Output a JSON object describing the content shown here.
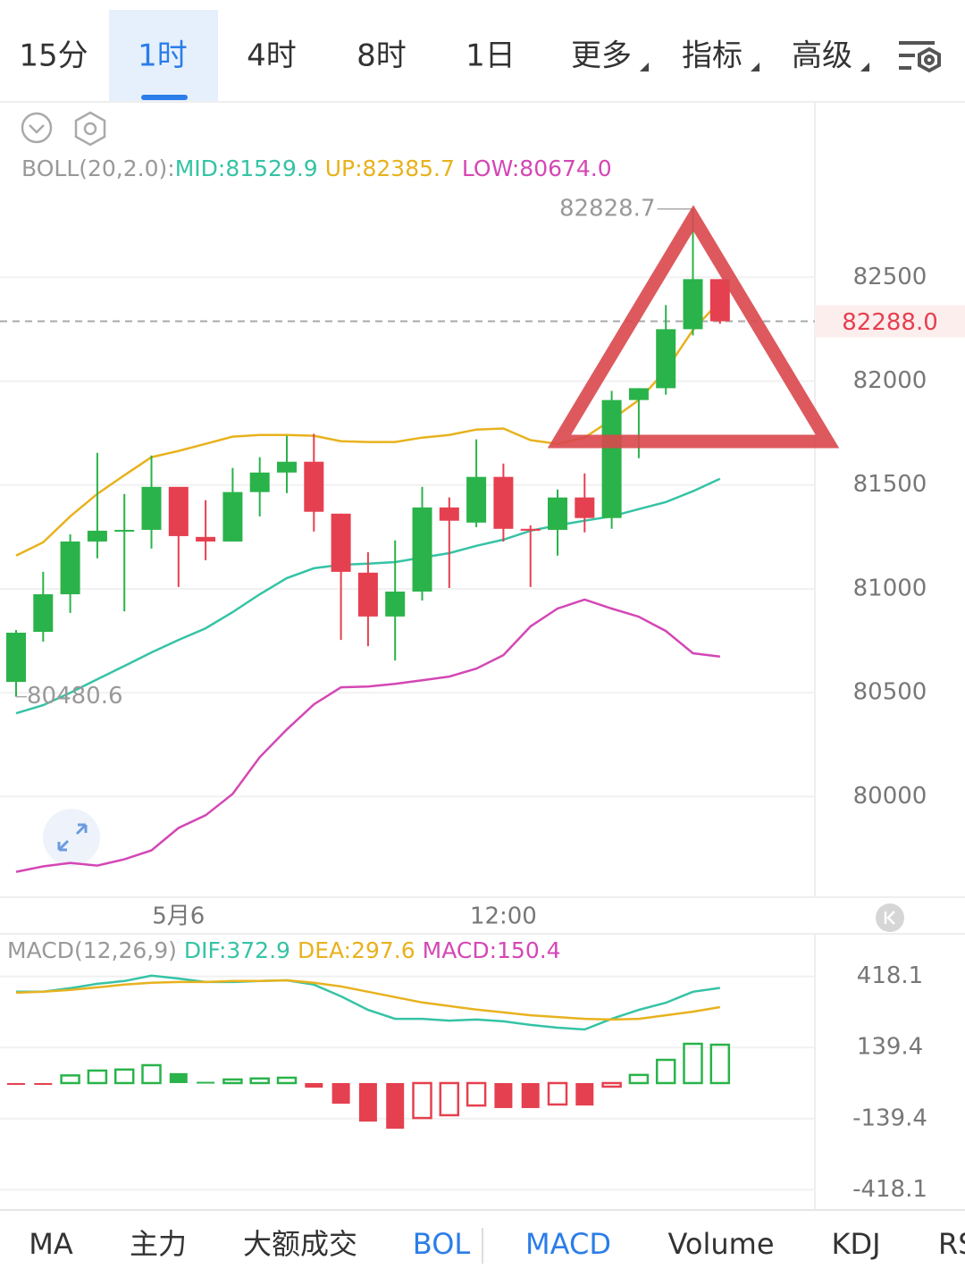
{
  "tabs": [
    "15分",
    "1时",
    "4时",
    "8时",
    "1日",
    "更多",
    "指标",
    "高级"
  ],
  "indicator_tabs": [
    "MA",
    "主力",
    "大额成交",
    "BOL",
    "MACD",
    "Volume",
    "KDJ",
    "RS"
  ],
  "chart_data": [
    {
      "type": "candlestick",
      "legend_label": "BOLL(20,2.0):",
      "categories": [
        null,
        null,
        null,
        null,
        null,
        null,
        "5月6",
        null,
        null,
        null,
        null,
        null,
        null,
        null,
        null,
        null,
        null,
        null,
        "12:00",
        null,
        null,
        null,
        null,
        null,
        null,
        null,
        null
      ],
      "open": [
        80552,
        80793,
        80974,
        81228,
        81284,
        81284,
        81491,
        81250,
        81228,
        81466,
        81560,
        81612,
        81362,
        81078,
        80867,
        80987,
        81392,
        81319,
        81539,
        81289,
        81284,
        81440,
        81341,
        81909,
        81966,
        82250,
        82491
      ],
      "high": [
        80802,
        81082,
        81263,
        81655,
        81457,
        81642,
        81491,
        81427,
        81582,
        81634,
        81737,
        81746,
        81362,
        81177,
        81233,
        81491,
        81440,
        81720,
        81603,
        81306,
        81478,
        81556,
        81953,
        81966,
        82366,
        82828.7,
        82491
      ],
      "low": [
        80480.6,
        80746,
        80884,
        81147,
        80892,
        81194,
        81009,
        81138,
        81228,
        81349,
        81461,
        81276,
        80754,
        80724,
        80655,
        80944,
        81004,
        81297,
        81228,
        81009,
        81160,
        81272,
        81289,
        81629,
        81935,
        82220,
        82276
      ],
      "close": [
        80789,
        80974,
        81228,
        81280,
        81284,
        81491,
        81254,
        81228,
        81466,
        81560,
        81612,
        81371,
        81082,
        80867,
        80987,
        81392,
        81328,
        81539,
        81289,
        81280,
        81440,
        81341,
        81909,
        81966,
        82250,
        82491,
        82288
      ],
      "last_price_label": "82288.0",
      "up_color": "#2ab34a",
      "down_color": "#e5404f",
      "series": [
        {
          "name": "MID:81529.9",
          "color": "#35c3a5",
          "values": [
            80401,
            80440,
            80500,
            80565,
            80629,
            80694,
            80754,
            80810,
            80888,
            80974,
            81052,
            81099,
            81116,
            81121,
            81129,
            81151,
            81172,
            81207,
            81237,
            81280,
            81306,
            81328,
            81349,
            81384,
            81418,
            81470,
            81529.9
          ]
        },
        {
          "name": "UP:82385.7",
          "color": "#e8b21e",
          "values": [
            81160,
            81224,
            81349,
            81457,
            81547,
            81634,
            81664,
            81698,
            81733,
            81741,
            81741,
            81737,
            81711,
            81707,
            81707,
            81728,
            81741,
            81767,
            81772,
            81716,
            81698,
            81728,
            81815,
            81909,
            82052,
            82246,
            82385.7
          ]
        },
        {
          "name": "LOW:80674.0",
          "color": "#d447b5",
          "values": [
            79638,
            79664,
            79681,
            79668,
            79698,
            79741,
            79849,
            79910,
            80013,
            80190,
            80323,
            80444,
            80526,
            80530,
            80543,
            80560,
            80578,
            80616,
            80681,
            80819,
            80905,
            80948,
            80905,
            80866,
            80797,
            80690,
            80674.0
          ]
        }
      ],
      "ylim": [
        79520,
        83340
      ],
      "yticks": [
        80000,
        80500,
        81000,
        81500,
        82000,
        82500
      ],
      "grid": true
    },
    {
      "type": "macd",
      "title": "MACD(12,26,9)",
      "series": [
        {
          "name": "DIF:372.9",
          "color": "#35c3a5",
          "values": [
            358,
            358,
            372,
            389,
            400,
            421,
            410,
            396,
            396,
            400,
            403,
            386,
            340,
            287,
            252,
            252,
            245,
            249,
            242,
            228,
            217,
            210,
            252,
            287,
            315,
            358,
            372.9
          ]
        },
        {
          "name": "DEA:297.6",
          "color": "#e8b21e",
          "values": [
            354,
            358,
            365,
            375,
            386,
            393,
            396,
            396,
            400,
            400,
            403,
            393,
            379,
            358,
            337,
            316,
            302,
            288,
            277,
            266,
            259,
            252,
            249,
            252,
            266,
            280,
            297.6
          ]
        }
      ],
      "histogram": {
        "name": "MACD:150.4",
        "name_color": "#d447b5",
        "up_color": "#2ab34a",
        "down_color": "#e5404f",
        "values": [
          -3,
          -3,
          30,
          49,
          53,
          70,
          39,
          5,
          14,
          18,
          21,
          -18,
          -81,
          -151,
          -179,
          -137,
          -126,
          -88,
          -98,
          -98,
          -84,
          -88,
          -14,
          32,
          91,
          154,
          150.4
        ],
        "hollow": [
          false,
          false,
          true,
          true,
          true,
          true,
          false,
          false,
          true,
          true,
          true,
          false,
          false,
          false,
          false,
          true,
          true,
          true,
          false,
          false,
          true,
          false,
          true,
          true,
          true,
          true,
          true
        ]
      },
      "ylim": [
        -494,
        585
      ],
      "yticks": [
        418.1,
        139.4,
        -139.4,
        -418.1
      ],
      "grid": true
    }
  ]
}
